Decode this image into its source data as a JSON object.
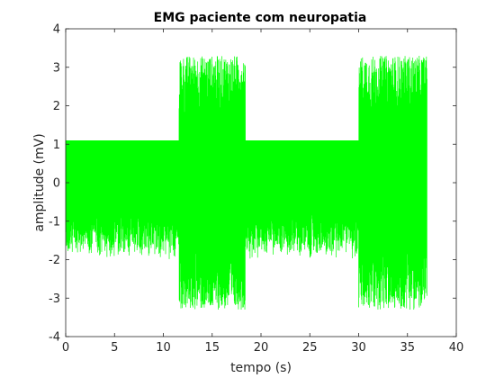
{
  "chart_data": {
    "type": "line",
    "title": "EMG paciente com neuropatia",
    "xlabel": "tempo (s)",
    "ylabel": "amplitude (mV)",
    "xlim": [
      0,
      40
    ],
    "ylim": [
      -4,
      4
    ],
    "x_ticks": [
      "0",
      "5",
      "10",
      "15",
      "20",
      "25",
      "30",
      "35",
      "40"
    ],
    "y_ticks": [
      "-4",
      "-3",
      "-2",
      "-1",
      "0",
      "1",
      "2",
      "3",
      "4"
    ],
    "grid": false,
    "line_color": "#00ff00",
    "duration_s": 37,
    "segments": [
      {
        "start": 0.0,
        "end": 11.6,
        "min": -2.7,
        "max": 1.1,
        "state": "rest"
      },
      {
        "start": 11.6,
        "end": 18.4,
        "min": -3.3,
        "max": 3.3,
        "state": "burst"
      },
      {
        "start": 18.4,
        "end": 30.0,
        "min": -2.7,
        "max": 1.1,
        "state": "rest"
      },
      {
        "start": 30.0,
        "end": 37.0,
        "min": -3.3,
        "max": 3.3,
        "state": "burst"
      }
    ],
    "series": [
      {
        "label": "EMG",
        "color": "#00ff00"
      }
    ]
  }
}
